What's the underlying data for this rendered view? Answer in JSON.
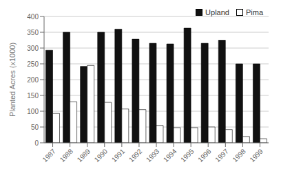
{
  "chart_data": {
    "type": "bar",
    "categories": [
      "1987",
      "1988",
      "1989",
      "1990",
      "1991",
      "1992",
      "1993",
      "1994",
      "1995",
      "1996",
      "1997",
      "1998",
      "1999"
    ],
    "series": [
      {
        "name": "Upland",
        "color": "#111111",
        "values": [
          293,
          350,
          242,
          350,
          360,
          328,
          315,
          313,
          363,
          315,
          325,
          250,
          250
        ]
      },
      {
        "name": "Pima",
        "color": "#ffffff",
        "values": [
          93,
          130,
          245,
          128,
          107,
          105,
          55,
          48,
          48,
          50,
          42,
          20,
          13
        ]
      }
    ],
    "ylabel": "Planted Acres (x1000)",
    "ylim": [
      0,
      400
    ],
    "yticks": [
      0,
      50,
      100,
      150,
      200,
      250,
      300,
      350,
      400
    ],
    "grid": true,
    "legend": "upper right"
  }
}
